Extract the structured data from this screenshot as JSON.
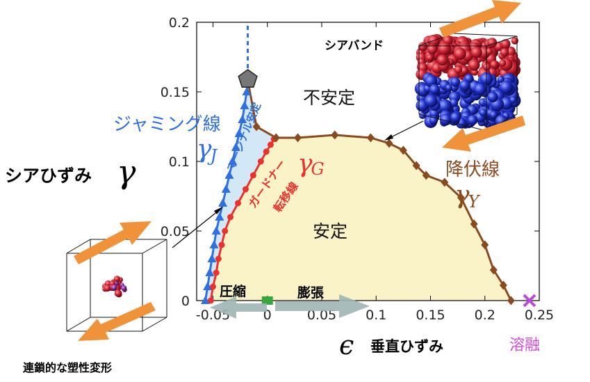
{
  "chart_data": {
    "type": "line",
    "xlim": [
      -0.065,
      0.25
    ],
    "ylim": [
      0,
      0.2
    ],
    "x_ticks": [
      "-0.05",
      "0",
      "0.05",
      "0.1",
      "0.15",
      "0.2",
      "0.25"
    ],
    "x_tick_values": [
      -0.05,
      0,
      0.05,
      0.1,
      0.15,
      0.2,
      0.25
    ],
    "y_ticks": [
      "0",
      "0.05",
      "0.1",
      "0.15",
      "0.2"
    ],
    "y_tick_values": [
      0,
      0.05,
      0.1,
      0.15,
      0.2
    ],
    "x_label_symbol": "ϵ",
    "x_label": "垂直ひずみ",
    "y_label": "シアひずみ",
    "y_label_symbol": "γ",
    "series": [
      {
        "key": "jamming",
        "color": "#2f6fe0",
        "marker": "triangle",
        "label_jp": "ジャミング線",
        "symbol": "γ",
        "symbol_sub": "J",
        "points": [
          [
            -0.057,
            0.0
          ],
          [
            -0.055,
            0.01
          ],
          [
            -0.053,
            0.02
          ],
          [
            -0.051,
            0.03
          ],
          [
            -0.049,
            0.04
          ],
          [
            -0.047,
            0.05
          ],
          [
            -0.044,
            0.06
          ],
          [
            -0.041,
            0.07
          ],
          [
            -0.038,
            0.08
          ],
          [
            -0.035,
            0.09
          ],
          [
            -0.032,
            0.1
          ],
          [
            -0.029,
            0.11
          ],
          [
            -0.026,
            0.12
          ],
          [
            -0.023,
            0.13
          ],
          [
            -0.021,
            0.14
          ],
          [
            -0.019,
            0.15
          ],
          [
            -0.018,
            0.158
          ]
        ]
      },
      {
        "key": "gardner",
        "color": "#e8322e",
        "marker": "circle",
        "label_jp_1": "ガードナー",
        "label_jp_2": "転移線",
        "symbol": "γ",
        "symbol_sub": "G",
        "points": [
          [
            -0.052,
            0.0
          ],
          [
            -0.05,
            0.01
          ],
          [
            -0.047,
            0.02
          ],
          [
            -0.045,
            0.03
          ],
          [
            -0.042,
            0.04
          ],
          [
            -0.039,
            0.05
          ],
          [
            -0.034,
            0.06
          ],
          [
            -0.027,
            0.07
          ],
          [
            -0.02,
            0.08
          ],
          [
            -0.013,
            0.09
          ],
          [
            -0.006,
            0.1
          ],
          [
            -0.001,
            0.107
          ],
          [
            0.003,
            0.112
          ],
          [
            0.006,
            0.116
          ]
        ]
      },
      {
        "key": "yield",
        "color": "#8a4a1f",
        "marker": "diamond",
        "label_jp": "降伏線",
        "symbol": "γ",
        "symbol_sub": "Y",
        "points": [
          [
            -0.018,
            0.158
          ],
          [
            -0.01,
            0.125
          ],
          [
            0.008,
            0.117
          ],
          [
            0.028,
            0.117
          ],
          [
            0.062,
            0.119
          ],
          [
            0.095,
            0.117
          ],
          [
            0.112,
            0.113
          ],
          [
            0.125,
            0.108
          ],
          [
            0.137,
            0.097
          ],
          [
            0.146,
            0.09
          ],
          [
            0.163,
            0.085
          ],
          [
            0.178,
            0.074
          ],
          [
            0.19,
            0.055
          ],
          [
            0.2,
            0.04
          ],
          [
            0.208,
            0.022
          ],
          [
            0.217,
            0.011
          ],
          [
            0.224,
            0.0
          ]
        ]
      }
    ],
    "dashed_line": {
      "x": -0.018,
      "y_from": 0.158,
      "y_to": 0.2,
      "color": "#2f6fe0"
    },
    "pentagon_marker": {
      "x": -0.018,
      "y": 0.158,
      "color": "#777777"
    },
    "green_marker": {
      "x": 0.0,
      "y": 0.0,
      "color": "#3aa53a"
    },
    "melt_marker": {
      "x": 0.241,
      "y": 0.0,
      "color": "#b84cd8"
    },
    "regions": {
      "unstable": "不安定",
      "stable": "安定",
      "marginal": "マージナル安定"
    },
    "annotations": {
      "shear_band": "シアバンド",
      "compression": "圧縮",
      "dilation": "膨張",
      "melting": "溶融",
      "plastic": "連鎖的な塑性変形"
    },
    "colors": {
      "stable_fill": "#fbf3c8",
      "marginal_fill": "#d2e8f6",
      "arrow_orange": "#f0923a",
      "arrow_gray": "#9fb6b4",
      "sphere_red": "#cc2233",
      "sphere_blue": "#2233cc",
      "sphere_purple": "#8833aa"
    }
  }
}
